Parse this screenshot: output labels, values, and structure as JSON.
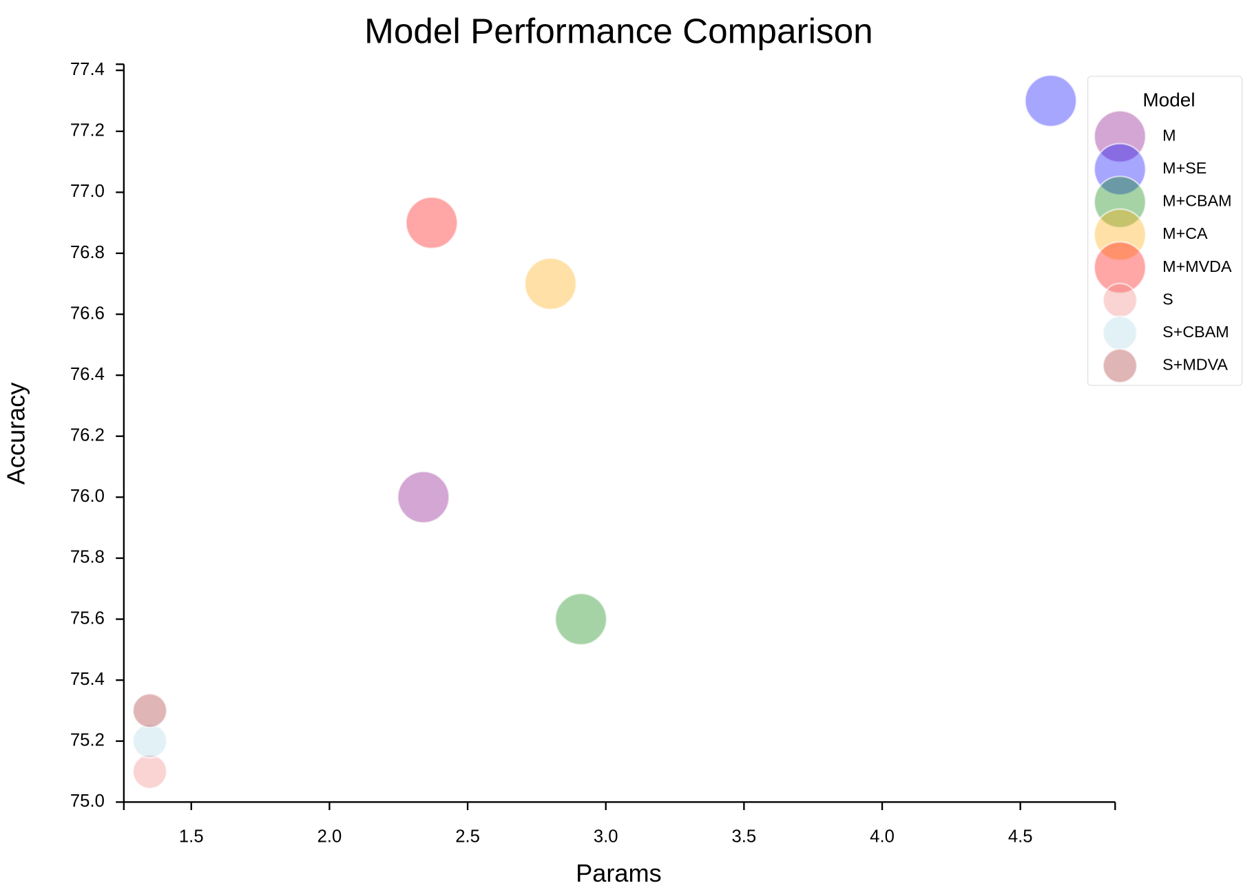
{
  "chart_data": {
    "type": "scatter",
    "title": "Model Performance Comparison",
    "x_label": "Params",
    "y_label": "Accuracy",
    "legend_title": "Model",
    "legend": "upper right",
    "opacity": 0.35,
    "xlim": [
      1.256,
      4.843
    ],
    "ylim": [
      75.0,
      77.42
    ],
    "xticks": [
      1.5,
      {
        "value": 2.0,
        "label": "2.0"
      },
      2.5,
      {
        "value": 3.0,
        "label": "3.0"
      },
      3.5,
      {
        "value": 4.0,
        "label": "4.0"
      },
      4.5
    ],
    "yticks": [
      {
        "value": 75.0,
        "label": "75.0"
      },
      75.2,
      75.4,
      75.6,
      75.8,
      {
        "value": 76.0,
        "label": "76.0"
      },
      76.2,
      76.4,
      76.6,
      76.8,
      {
        "value": 77.0,
        "label": "77.0"
      },
      77.2,
      77.4
    ],
    "series": [
      {
        "name": "M",
        "color": "#800080",
        "x": [
          2.34
        ],
        "values": [
          76.0
        ],
        "sizes": [
          1000
        ]
      },
      {
        "name": "M+SE",
        "color": "#0000ff",
        "x": [
          4.61
        ],
        "values": [
          77.3
        ],
        "sizes": [
          1000
        ]
      },
      {
        "name": "M+CBAM",
        "color": "#008000",
        "x": [
          2.91
        ],
        "values": [
          75.6
        ],
        "sizes": [
          1000
        ]
      },
      {
        "name": "M+CA",
        "color": "#ffa500",
        "x": [
          2.8
        ],
        "values": [
          76.7
        ],
        "sizes": [
          1000
        ]
      },
      {
        "name": "M+MVDA",
        "color": "#ff0000",
        "x": [
          2.37
        ],
        "values": [
          76.9
        ],
        "sizes": [
          1000
        ]
      },
      {
        "name": "S",
        "color": "#f08080",
        "x": [
          1.35
        ],
        "values": [
          75.1
        ],
        "sizes": [
          430
        ]
      },
      {
        "name": "S+CBAM",
        "color": "#add8e6",
        "x": [
          1.35
        ],
        "values": [
          75.2
        ],
        "sizes": [
          430
        ]
      },
      {
        "name": "S+MDVA",
        "color": "#a52a2a",
        "x": [
          1.35
        ],
        "values": [
          75.3
        ],
        "sizes": [
          430
        ]
      }
    ]
  }
}
